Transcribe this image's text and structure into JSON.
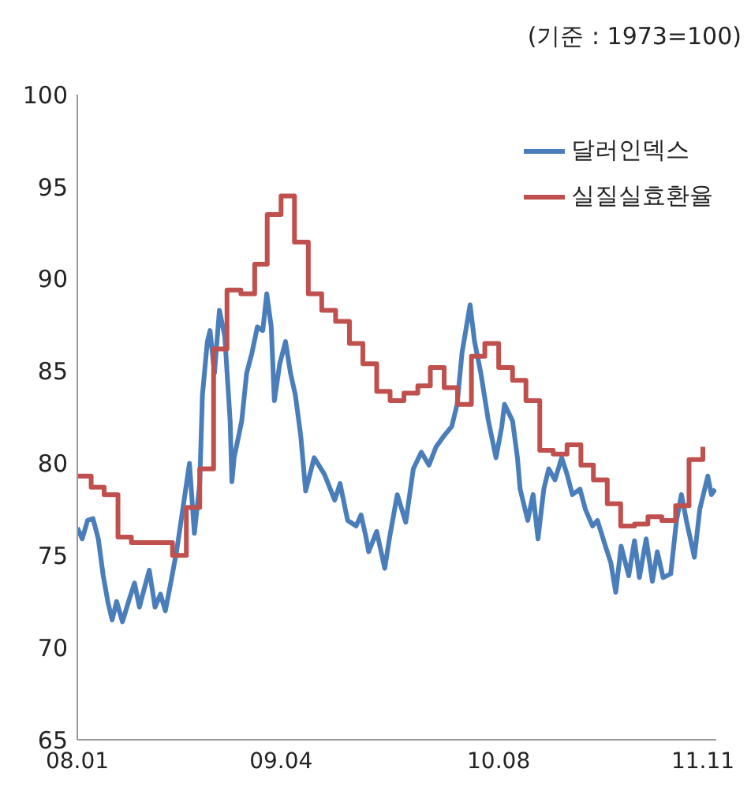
{
  "chart_data": {
    "type": "line",
    "annotations": [
      "(기준 : 1973=100)"
    ],
    "xlim": [
      "2008-01-01",
      "2011-12-01"
    ],
    "xticks": [
      {
        "value": "2008-01-01",
        "label": "08.01"
      },
      {
        "value": "2009-04-01",
        "label": "09.04"
      },
      {
        "value": "2010-08-01",
        "label": "10.08"
      },
      {
        "value": "2011-11-01",
        "label": "11.11"
      }
    ],
    "ylim": [
      65,
      100
    ],
    "yticks": [
      65,
      70,
      75,
      80,
      85,
      90,
      95,
      100
    ],
    "grid": false,
    "legend": "top right",
    "series": [
      {
        "name": "달러인덱스",
        "type": "line",
        "color": "#4a7ebb",
        "x": [
          "2008-01-01",
          "2008-01-12",
          "2008-01-24",
          "2008-02-05",
          "2008-02-17",
          "2008-02-28",
          "2008-03-10",
          "2008-03-19",
          "2008-03-29",
          "2008-04-11",
          "2008-04-26",
          "2008-05-08",
          "2008-05-19",
          "2008-05-31",
          "2008-06-10",
          "2008-06-23",
          "2008-07-05",
          "2008-07-16",
          "2008-07-28",
          "2008-08-10",
          "2008-08-21",
          "2008-09-08",
          "2008-09-19",
          "2008-10-01",
          "2008-10-07",
          "2008-10-18",
          "2008-10-24",
          "2008-11-03",
          "2008-11-14",
          "2008-11-26",
          "2008-12-08",
          "2008-12-12",
          "2008-12-17",
          "2009-01-03",
          "2009-01-14",
          "2009-01-26",
          "2009-02-07",
          "2009-02-19",
          "2009-02-28",
          "2009-03-10",
          "2009-03-17",
          "2009-03-29",
          "2009-04-11",
          "2009-04-22",
          "2009-05-03",
          "2009-05-15",
          "2009-05-26",
          "2009-06-14",
          "2009-07-07",
          "2009-07-30",
          "2009-08-11",
          "2009-08-28",
          "2009-09-16",
          "2009-09-27",
          "2009-10-08",
          "2009-10-14",
          "2009-11-01",
          "2009-11-19",
          "2009-11-30",
          "2009-12-17",
          "2010-01-05",
          "2010-01-22",
          "2010-02-09",
          "2010-02-26",
          "2010-03-14",
          "2010-04-01",
          "2010-04-18",
          "2010-04-30",
          "2010-05-11",
          "2010-05-29",
          "2010-06-08",
          "2010-06-22",
          "2010-07-09",
          "2010-07-26",
          "2010-08-08",
          "2010-08-14",
          "2010-09-01",
          "2010-09-12",
          "2010-09-18",
          "2010-10-05",
          "2010-10-17",
          "2010-10-28",
          "2010-11-10",
          "2010-11-21",
          "2010-12-05",
          "2010-12-20",
          "2011-01-01",
          "2011-01-13",
          "2011-01-30",
          "2011-02-11",
          "2011-02-27",
          "2011-03-10",
          "2011-03-28",
          "2011-04-09",
          "2011-04-20",
          "2011-05-02",
          "2011-05-19",
          "2011-06-01",
          "2011-06-12",
          "2011-06-27",
          "2011-07-11",
          "2011-07-22",
          "2011-08-04",
          "2011-08-21",
          "2011-09-03",
          "2011-09-14",
          "2011-09-25",
          "2011-10-13",
          "2011-10-25",
          "2011-11-12",
          "2011-11-20",
          "2011-11-29"
        ],
        "values": [
          76.5,
          75.9,
          76.9,
          77.0,
          75.9,
          73.9,
          72.4,
          71.5,
          72.5,
          71.4,
          72.6,
          73.5,
          72.2,
          73.3,
          74.2,
          72.2,
          72.9,
          72.0,
          73.5,
          75.2,
          77.0,
          80.0,
          76.2,
          78.9,
          83.7,
          86.6,
          87.2,
          84.9,
          88.3,
          86.9,
          82.3,
          79.0,
          80.3,
          82.3,
          84.9,
          86.0,
          87.4,
          87.2,
          89.2,
          87.4,
          83.4,
          85.4,
          86.6,
          84.9,
          83.7,
          81.5,
          78.5,
          80.3,
          79.4,
          78.0,
          78.9,
          76.9,
          76.6,
          77.2,
          76.0,
          75.2,
          76.3,
          74.3,
          76.0,
          78.3,
          76.8,
          79.7,
          80.6,
          79.9,
          80.9,
          81.5,
          82.0,
          83.2,
          86.0,
          88.6,
          86.6,
          84.9,
          82.3,
          80.3,
          82.0,
          83.2,
          82.3,
          80.3,
          78.6,
          76.9,
          78.3,
          75.9,
          78.6,
          79.7,
          79.1,
          80.3,
          79.4,
          78.3,
          78.6,
          77.5,
          76.6,
          76.9,
          75.5,
          74.6,
          73.0,
          75.5,
          73.9,
          75.8,
          73.8,
          75.9,
          73.6,
          75.2,
          73.8,
          74.0,
          76.9,
          78.3,
          76.9,
          74.9,
          77.5,
          79.3,
          78.3,
          78.6
        ]
      },
      {
        "name": "실질실효환율",
        "type": "step",
        "color": "#c0504d",
        "x": [
          "2008-01-01",
          "2008-02-01",
          "2008-03-01",
          "2008-04-01",
          "2008-05-01",
          "2008-06-01",
          "2008-07-01",
          "2008-08-01",
          "2008-09-01",
          "2008-10-01",
          "2008-11-01",
          "2008-12-01",
          "2009-01-01",
          "2009-02-01",
          "2009-03-01",
          "2009-04-01",
          "2009-05-01",
          "2009-06-01",
          "2009-07-01",
          "2009-08-01",
          "2009-09-01",
          "2009-10-01",
          "2009-11-01",
          "2009-12-01",
          "2010-01-01",
          "2010-02-01",
          "2010-03-01",
          "2010-04-01",
          "2010-05-01",
          "2010-06-01",
          "2010-07-01",
          "2010-08-01",
          "2010-09-01",
          "2010-10-01",
          "2010-11-01",
          "2010-12-01",
          "2011-01-01",
          "2011-02-01",
          "2011-03-01",
          "2011-04-01",
          "2011-05-01",
          "2011-06-01",
          "2011-07-01",
          "2011-08-01",
          "2011-09-01",
          "2011-10-01",
          "2011-11-01"
        ],
        "values": [
          79.3,
          78.7,
          78.3,
          76.0,
          75.7,
          75.7,
          75.7,
          75.0,
          77.6,
          79.7,
          86.2,
          89.4,
          89.2,
          90.8,
          93.5,
          94.5,
          92.0,
          89.2,
          88.3,
          87.7,
          86.5,
          85.4,
          83.9,
          83.4,
          83.8,
          84.2,
          85.2,
          84.1,
          83.2,
          85.8,
          86.5,
          85.2,
          84.5,
          83.4,
          80.7,
          80.5,
          81.0,
          79.9,
          79.1,
          77.8,
          76.6,
          76.7,
          77.1,
          76.9,
          77.7,
          80.2,
          80.9
        ]
      }
    ]
  }
}
